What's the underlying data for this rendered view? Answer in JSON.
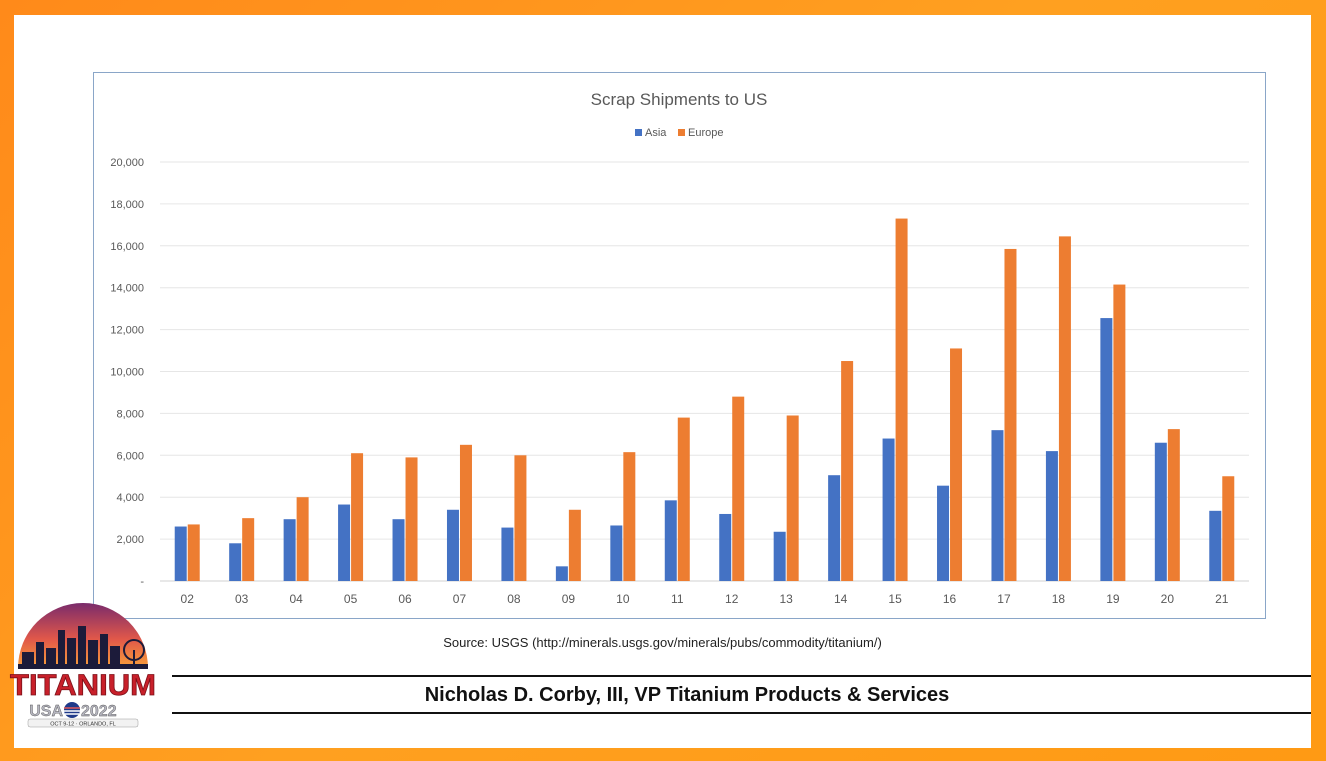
{
  "chart_data": {
    "type": "bar",
    "title": "Scrap Shipments to US",
    "categories": [
      "02",
      "03",
      "04",
      "05",
      "06",
      "07",
      "08",
      "09",
      "10",
      "11",
      "12",
      "13",
      "14",
      "15",
      "16",
      "17",
      "18",
      "19",
      "20",
      "21"
    ],
    "series": [
      {
        "name": "Asia",
        "color": "#4472c4",
        "values": [
          2600,
          1800,
          2950,
          3650,
          2950,
          3400,
          2550,
          700,
          2650,
          3850,
          3200,
          2350,
          5050,
          6800,
          4550,
          7200,
          6200,
          12550,
          6600,
          3350
        ]
      },
      {
        "name": "Europe",
        "color": "#ed7d31",
        "values": [
          2700,
          3000,
          4000,
          6100,
          5900,
          6500,
          6000,
          3400,
          6150,
          7800,
          8800,
          7900,
          10500,
          17300,
          11100,
          15850,
          16450,
          14150,
          7250,
          5000
        ]
      }
    ],
    "yticks": [
      "-",
      "2,000",
      "4,000",
      "6,000",
      "8,000",
      "10,000",
      "12,000",
      "14,000",
      "16,000",
      "18,000",
      "20,000"
    ],
    "ylim": [
      0,
      20000
    ],
    "grid": true,
    "legend": "top-center"
  },
  "source": "Source: USGS (http://minerals.usgs.gov/minerals/pubs/commodity/titanium/)",
  "presenter": "Nicholas D. Corby, III, VP Titanium Products & Services",
  "logo": {
    "word": "TITANIUM",
    "event_left": "USA",
    "event_right": "2022",
    "tagline": "OCT 9-12 · ORLANDO, FL"
  }
}
